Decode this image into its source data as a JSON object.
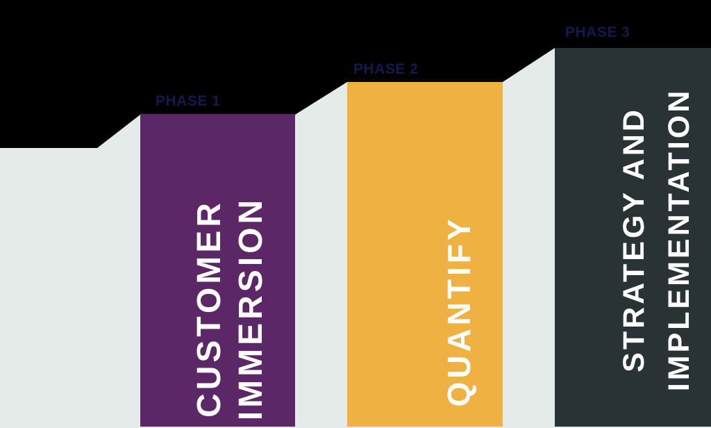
{
  "canvas": {
    "background_color": "#000000"
  },
  "staircase": {
    "color": "#e5ebe8"
  },
  "phase_label_color": "#131a4d",
  "title_text_color": "#ffffff",
  "phases": [
    {
      "label": "PHASE 1",
      "color": "#5c2766",
      "title_lines": [
        "CUSTOMER",
        "IMMERSION"
      ]
    },
    {
      "label": "PHASE 2",
      "color": "#efb242",
      "title_lines": [
        "QUANTIFY"
      ]
    },
    {
      "label": "PHASE 3",
      "color": "#293234",
      "title_lines": [
        "STRATEGY AND",
        "IMPLEMENTATION"
      ]
    }
  ]
}
